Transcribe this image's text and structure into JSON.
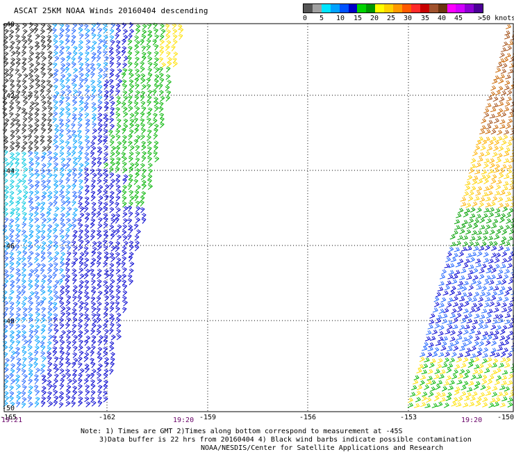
{
  "title": "ASCAT 25KM NOAA Winds 20160404 descending",
  "color_scale": {
    "colors": [
      "#555555",
      "#a0a0a0",
      "#00e5ff",
      "#00a2ff",
      "#0052ff",
      "#0000c8",
      "#00d400",
      "#009600",
      "#ffff00",
      "#ffd200",
      "#ff9a00",
      "#ff5a00",
      "#ff2a2a",
      "#c80000",
      "#a0522d",
      "#6b3410",
      "#ff00ff",
      "#d200ff",
      "#8c00d2",
      "#4b0096"
    ],
    "labels": [
      "0",
      "5",
      "10",
      "15",
      "20",
      "25",
      "30",
      "35",
      "40",
      "45",
      ">50 knots"
    ]
  },
  "map": {
    "lat_labels": [
      "-40",
      "-42",
      "-44",
      "-46",
      "-48",
      "-50"
    ],
    "lon_labels": [
      "-165",
      "-162",
      "-159",
      "-156",
      "-153",
      "-150"
    ]
  },
  "times": {
    "left_edge": "19:21",
    "west_swath": "19:20",
    "east_swath": "19:20"
  },
  "notes": {
    "line1": "Note: 1) Times are GMT 2)Times along bottom correspond to measurement at -45S",
    "line2": "3)Data buffer is 22 hrs from 20160404 4) Black wind barbs indicate possible contamination",
    "line3": "NOAA/NESDIS/Center for Satellite Applications and Research"
  }
}
